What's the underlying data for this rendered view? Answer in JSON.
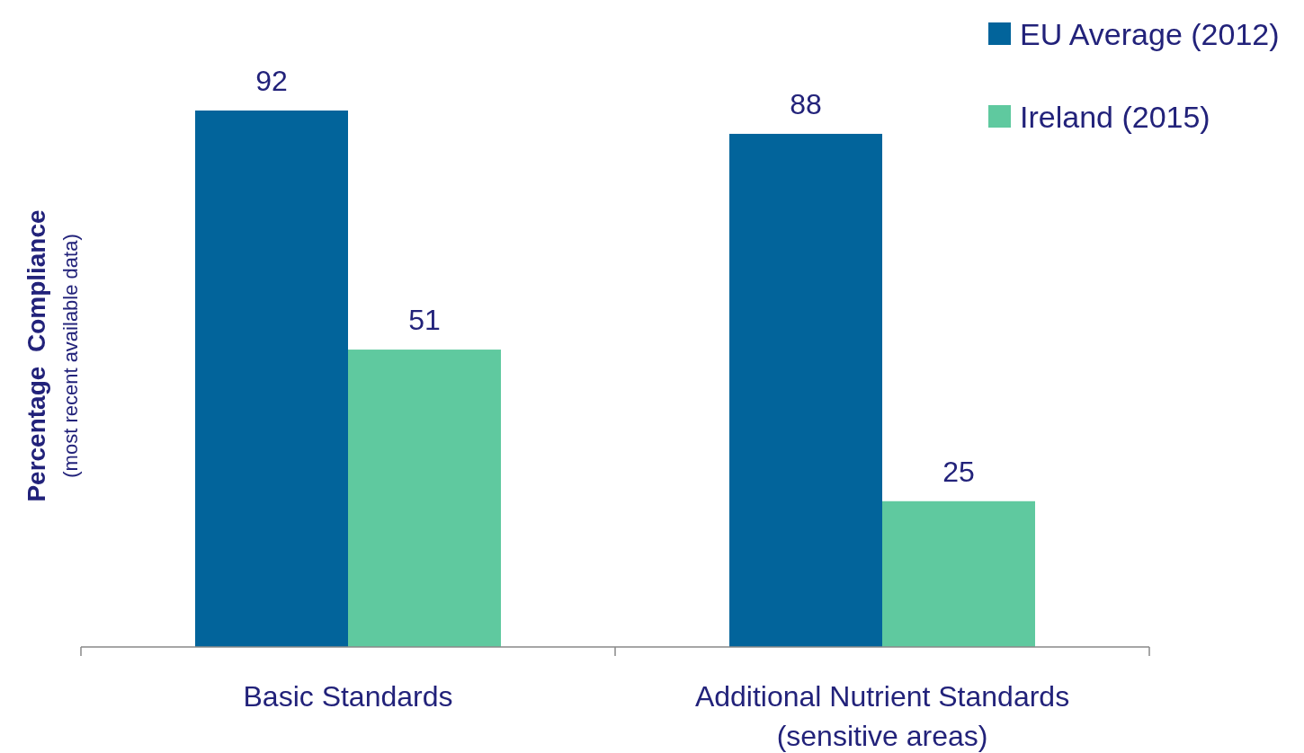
{
  "chart_data": {
    "type": "bar",
    "categories": [
      "Basic Standards",
      "Additional Nutrient Standards\n(sensitive areas)"
    ],
    "series": [
      {
        "name": "EU Average (2012)",
        "color": "#02649b",
        "values": [
          92,
          88
        ]
      },
      {
        "name": "Ireland (2015)",
        "color": "#5fc99f",
        "values": [
          51,
          25
        ]
      }
    ],
    "ylabel": "Percentage  Compliance",
    "annotations": [
      "(most recent available data)"
    ],
    "data_labels": true,
    "legend": "top right"
  }
}
